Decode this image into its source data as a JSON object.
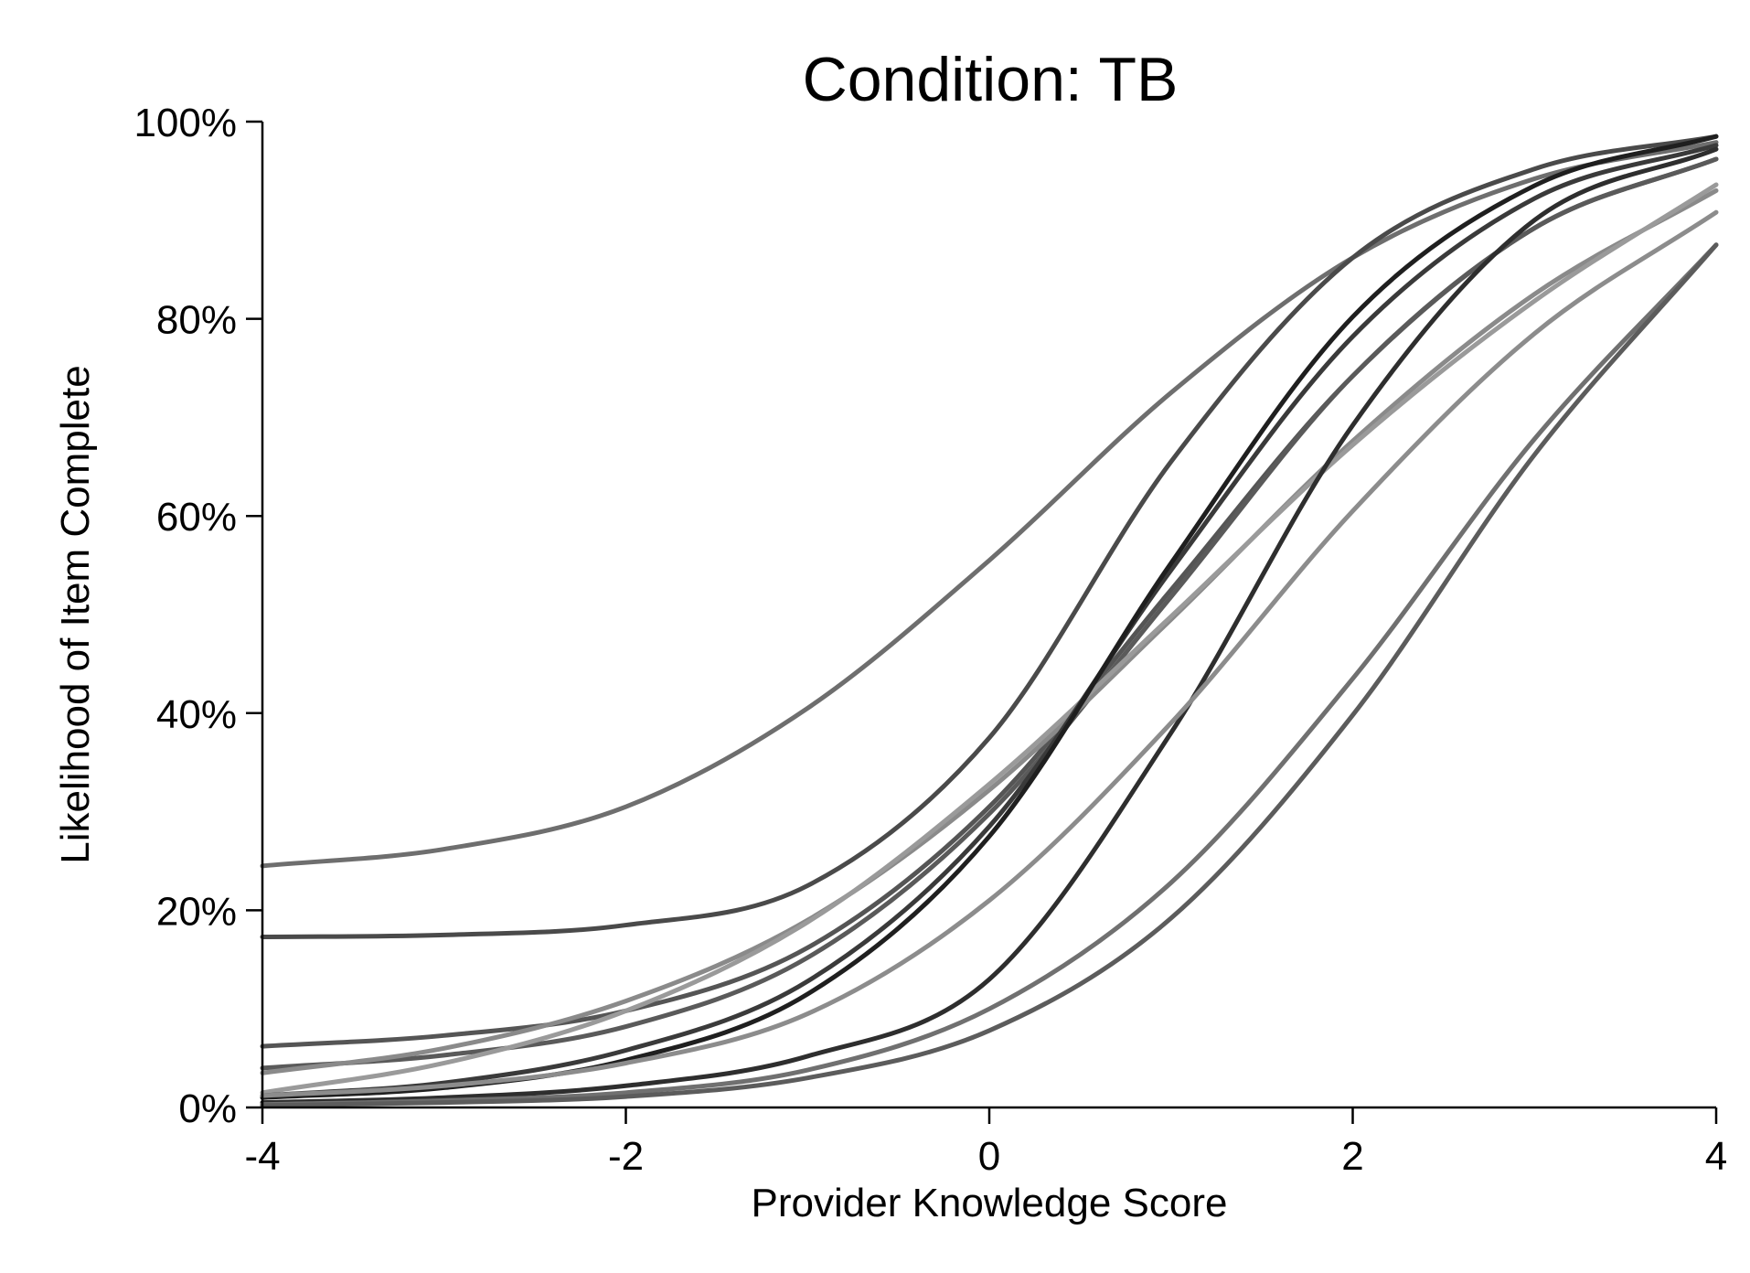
{
  "chart_data": {
    "type": "line",
    "title": "Condition: TB",
    "xlabel": "Provider Knowledge Score",
    "ylabel": "Likelihood of Item Complete",
    "xlim": [
      -4,
      4
    ],
    "ylim": [
      0,
      1
    ],
    "x_ticks": [
      {
        "value": -4,
        "label": "-4"
      },
      {
        "value": -2,
        "label": "-2"
      },
      {
        "value": 0,
        "label": "0"
      },
      {
        "value": 2,
        "label": "2"
      },
      {
        "value": 4,
        "label": "4"
      }
    ],
    "y_ticks": [
      {
        "value": 0,
        "label": "0%"
      },
      {
        "value": 0.2,
        "label": "20%"
      },
      {
        "value": 0.4,
        "label": "40%"
      },
      {
        "value": 0.6,
        "label": "60%"
      },
      {
        "value": 0.8,
        "label": "80%"
      },
      {
        "value": 1,
        "label": "100%"
      }
    ],
    "grid": false,
    "legend": "none",
    "x": [
      -4,
      -3,
      -2,
      -1,
      0,
      1,
      2,
      3,
      4
    ],
    "series": [
      {
        "color": "#6e6e6e",
        "values": [
          0.245,
          0.262,
          0.305,
          0.405,
          0.555,
          0.725,
          0.862,
          0.942,
          0.979
        ]
      },
      {
        "color": "#4a4a4a",
        "values": [
          0.173,
          0.175,
          0.185,
          0.225,
          0.375,
          0.655,
          0.862,
          0.952,
          0.985
        ]
      },
      {
        "color": "#555555",
        "values": [
          0.062,
          0.073,
          0.098,
          0.162,
          0.305,
          0.525,
          0.742,
          0.892,
          0.962
        ]
      },
      {
        "color": "#5a5a5a",
        "values": [
          0.04,
          0.053,
          0.082,
          0.152,
          0.298,
          0.518,
          0.742,
          0.892,
          0.962
        ]
      },
      {
        "color": "#8a8a8a",
        "values": [
          0.035,
          0.06,
          0.108,
          0.19,
          0.322,
          0.495,
          0.676,
          0.825,
          0.93
        ]
      },
      {
        "color": "#9a9a9a",
        "values": [
          0.015,
          0.045,
          0.098,
          0.188,
          0.328,
          0.498,
          0.672,
          0.818,
          0.936
        ]
      },
      {
        "color": "#3a3a3a",
        "values": [
          0.012,
          0.025,
          0.058,
          0.128,
          0.285,
          0.545,
          0.782,
          0.922,
          0.976
        ]
      },
      {
        "color": "#1f1f1f",
        "values": [
          0.01,
          0.02,
          0.048,
          0.115,
          0.275,
          0.552,
          0.802,
          0.935,
          0.985
        ]
      },
      {
        "color": "#2e2e2e",
        "values": [
          0.005,
          0.01,
          0.022,
          0.052,
          0.13,
          0.38,
          0.692,
          0.9,
          0.972
        ]
      },
      {
        "color": "#8c8c8c",
        "values": [
          0.012,
          0.022,
          0.045,
          0.095,
          0.21,
          0.39,
          0.605,
          0.785,
          0.908
        ]
      },
      {
        "color": "#707070",
        "values": [
          0.003,
          0.007,
          0.015,
          0.038,
          0.1,
          0.228,
          0.435,
          0.678,
          0.875
        ]
      },
      {
        "color": "#5c5c5c",
        "values": [
          0.002,
          0.005,
          0.011,
          0.03,
          0.078,
          0.192,
          0.398,
          0.662,
          0.875
        ]
      }
    ]
  }
}
